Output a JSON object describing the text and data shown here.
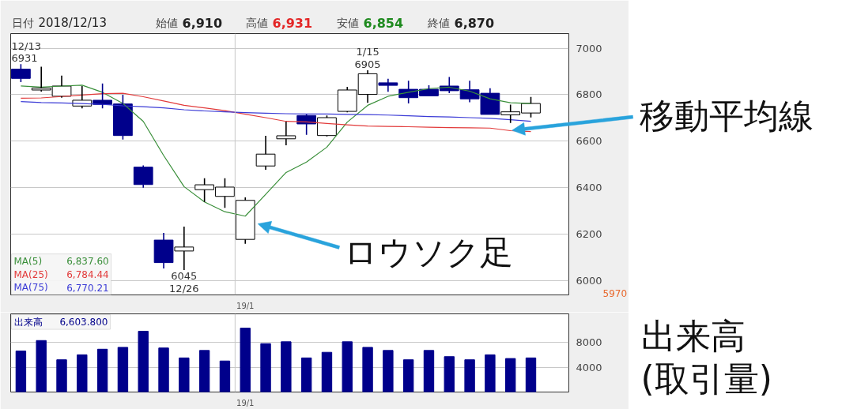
{
  "chart_data": [
    {
      "type": "candlestick",
      "categories": [
        null,
        null,
        null,
        null,
        null,
        null,
        null,
        null,
        null,
        null,
        null,
        "19/1",
        null,
        null,
        null,
        null,
        null,
        null,
        null,
        null,
        null,
        null,
        null,
        null,
        null,
        null
      ],
      "ohlc": [
        [
          6910,
          6931,
          6854,
          6870
        ],
        [
          6820,
          6920,
          6813,
          6828
        ],
        [
          6793,
          6882,
          6787,
          6837
        ],
        [
          6751,
          6837,
          6741,
          6776
        ],
        [
          6776,
          6848,
          6741,
          6758
        ],
        [
          6760,
          6800,
          6607,
          6624
        ],
        [
          6488,
          6495,
          6399,
          6413
        ],
        [
          6174,
          6205,
          6052,
          6077
        ],
        [
          6127,
          6232,
          6045,
          6144
        ],
        [
          6391,
          6440,
          6338,
          6412
        ],
        [
          6362,
          6440,
          6313,
          6402
        ],
        [
          6177,
          6358,
          6158,
          6345
        ],
        [
          6493,
          6623,
          6477,
          6544
        ],
        [
          6610,
          6684,
          6582,
          6623
        ],
        [
          6710,
          6715,
          6627,
          6674
        ],
        [
          6624,
          6710,
          6620,
          6701
        ],
        [
          6728,
          6834,
          6724,
          6820
        ],
        [
          6801,
          6905,
          6765,
          6890
        ],
        [
          6851,
          6868,
          6812,
          6840
        ],
        [
          6823,
          6860,
          6762,
          6787
        ],
        [
          6823,
          6840,
          6795,
          6795
        ],
        [
          6837,
          6876,
          6806,
          6817
        ],
        [
          6821,
          6860,
          6767,
          6782
        ],
        [
          6806,
          6828,
          6715,
          6715
        ],
        [
          6713,
          6757,
          6678,
          6726
        ],
        [
          6721,
          6790,
          6702,
          6762
        ]
      ],
      "colors": [
        "#00008b",
        "#ffffff",
        "#ffffff",
        "#ffffff",
        "#00008b",
        "#00008b",
        "#00008b",
        "#00008b",
        "#ffffff",
        "#ffffff",
        "#ffffff",
        "#ffffff",
        "#ffffff",
        "#ffffff",
        "#00008b",
        "#ffffff",
        "#ffffff",
        "#ffffff",
        "#00008b",
        "#00008b",
        "#00008b",
        "#00008b",
        "#00008b",
        "#00008b",
        "#ffffff",
        "#ffffff"
      ],
      "series": [
        {
          "type": "line",
          "name": "MA(5) 6,837.60",
          "color": "#3a8f3a",
          "values": [
            6837.6,
            6832,
            6837,
            6841,
            6810,
            6762,
            6685,
            6538,
            6404,
            6338,
            6296,
            6277,
            6371,
            6465,
            6510,
            6574,
            6682,
            6754,
            6793,
            6810,
            6826,
            6832,
            6815,
            6782,
            6765,
            6762
          ]
        },
        {
          "type": "line",
          "name": "MA(25) 6,784.44",
          "color": "#e23b3b",
          "values": [
            6784.44,
            6786,
            6792,
            6798,
            6804,
            6806,
            6791,
            6773,
            6754,
            6743,
            6731,
            6716,
            6701,
            6685,
            6683,
            6676,
            6670,
            6665,
            6663,
            6662,
            6660,
            6658,
            6657,
            6656,
            6645,
            6641
          ]
        },
        {
          "type": "line",
          "name": "MA(75) 6,770.21",
          "color": "#3b3bd6",
          "values": [
            6770.21,
            6766,
            6764,
            6762,
            6758,
            6752,
            6748,
            6743,
            6735,
            6730,
            6726,
            6723,
            6720,
            6718,
            6717,
            6717,
            6715,
            6714,
            6712,
            6709,
            6706,
            6704,
            6701,
            6698,
            6692,
            6685
          ]
        }
      ],
      "ylim": [
        5938,
        7063
      ],
      "yticks": [
        6000,
        6200,
        6400,
        6600,
        6800,
        7000
      ],
      "grid": true,
      "annotations": [
        "日付 2018/12/13",
        "始値 6,910",
        "高値 6,931",
        "安値 6,854",
        "終値 6,870",
        "12/13\n6931",
        "1/15\n6905",
        "6045\n12/26",
        "移動平均線",
        "ロウソク足",
        "5970"
      ]
    },
    {
      "type": "bar",
      "categories": [
        null,
        null,
        null,
        null,
        null,
        null,
        null,
        null,
        null,
        null,
        null,
        "19/1",
        null,
        null,
        null,
        null,
        null,
        null,
        null,
        null,
        null,
        null,
        null,
        null,
        null,
        null
      ],
      "series": [
        {
          "name": "出来高 6,603.800",
          "color": "#00008b",
          "values": [
            6603.8,
            8300,
            5200,
            6000,
            6900,
            7200,
            9800,
            7100,
            5500,
            6700,
            5000,
            10300,
            7800,
            8100,
            5500,
            6400,
            8100,
            7200,
            6700,
            5200,
            6700,
            5700,
            5200,
            6000,
            5400,
            5500
          ]
        }
      ],
      "ylim": [
        0,
        12600
      ],
      "yticks": [
        4000,
        8000
      ],
      "grid": true,
      "ylabel": "出来高\n(取引量)"
    }
  ]
}
